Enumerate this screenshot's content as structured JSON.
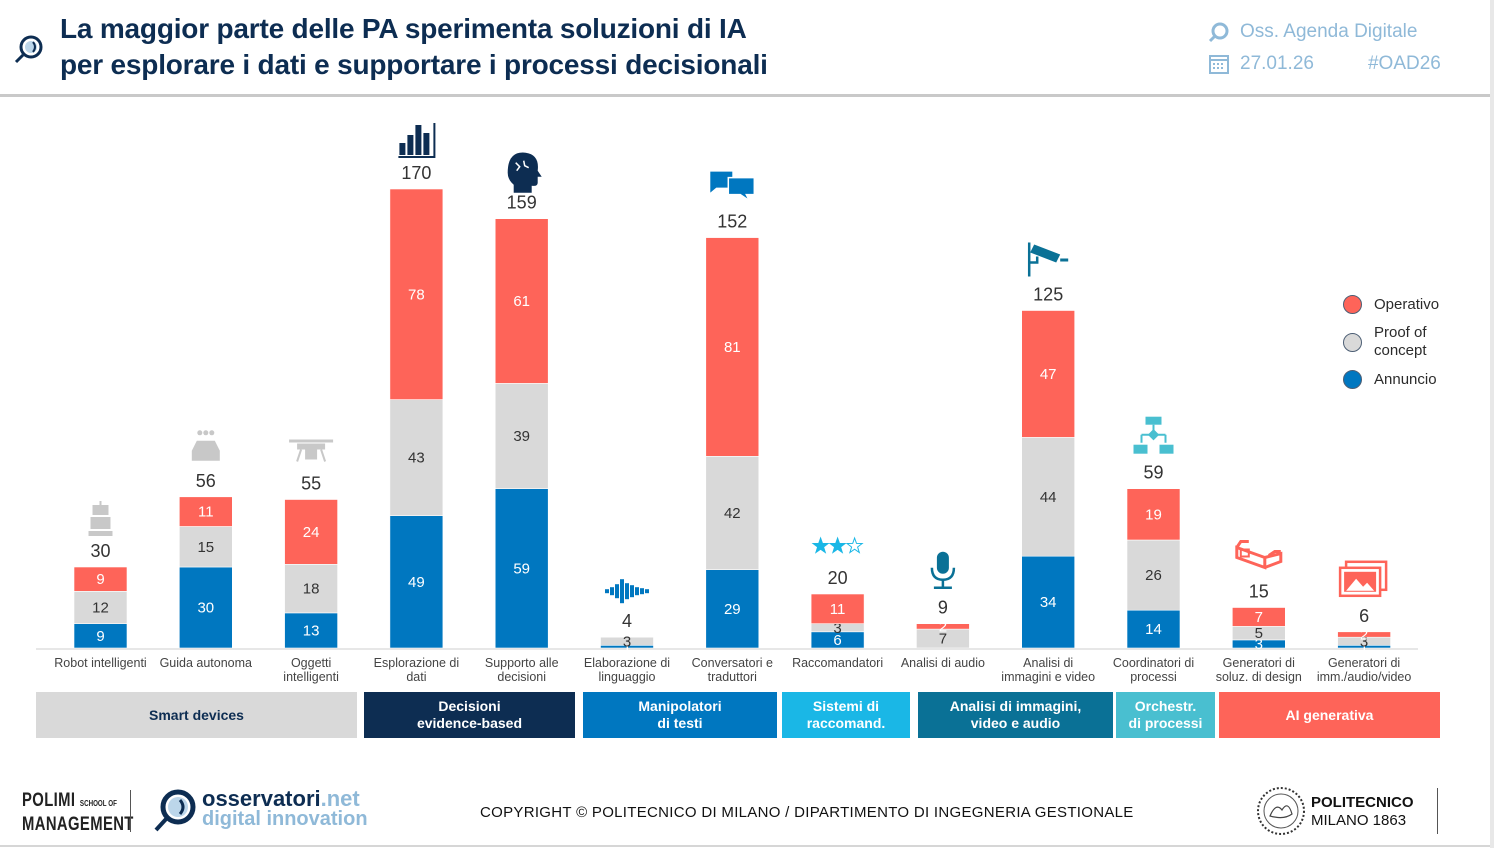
{
  "header": {
    "title_line1": "La maggior parte delle PA sperimenta soluzioni di IA",
    "title_line2": "per esplorare i dati e supportare i processi decisionali",
    "title_icon": "magnifier-icon",
    "source": "Oss. Agenda Digitale",
    "date": "27.01.26",
    "hashtag": "#OAD26"
  },
  "colors": {
    "operativo": "#fe6459",
    "poc": "#d9d9d9",
    "annuncio": "#0077c0",
    "title": "#0d2d52",
    "accent_light": "#8fb9d8"
  },
  "legend": [
    {
      "key": "operativo",
      "label": "Operativo"
    },
    {
      "key": "poc",
      "label": "Proof of concept"
    },
    {
      "key": "annuncio",
      "label": "Annuncio"
    }
  ],
  "chart_data": {
    "type": "bar",
    "stacked": true,
    "title": "La maggior parte delle PA sperimenta soluzioni di IA per esplorare i dati e supportare i processi decisionali",
    "xlabel": "",
    "ylabel": "",
    "ylim": [
      0,
      170
    ],
    "grid": false,
    "legend_position": "right",
    "categories": [
      "Robot intelligenti",
      "Guida autonoma",
      "Oggetti intelligenti",
      "Esplorazione di dati",
      "Supporto alle decisioni",
      "Elaborazione di linguaggio",
      "Conversatori e traduttori",
      "Raccomandatori",
      "Analisi di audio",
      "Analisi di immagini e video",
      "Coordinatori di processi",
      "Generatori di soluz. di design",
      "Generatori di imm./audio/video"
    ],
    "category_labels": [
      [
        "Robot intelligenti"
      ],
      [
        "Guida autonoma"
      ],
      [
        "Oggetti",
        "intelligenti"
      ],
      [
        "Esplorazione di",
        "dati"
      ],
      [
        "Supporto alle",
        "decisioni"
      ],
      [
        "Elaborazione di",
        "linguaggio"
      ],
      [
        "Conversatori e",
        "traduttori"
      ],
      [
        "Raccomandatori"
      ],
      [
        "Analisi di audio"
      ],
      [
        "Analisi di",
        "immagini e video"
      ],
      [
        "Coordinatori di",
        "processi"
      ],
      [
        "Generatori di",
        "soluz. di design"
      ],
      [
        "Generatori di",
        "imm./audio/video"
      ]
    ],
    "totals": [
      30,
      56,
      55,
      170,
      159,
      4,
      152,
      20,
      9,
      125,
      59,
      15,
      6
    ],
    "series": [
      {
        "name": "Annuncio",
        "key": "annuncio",
        "values": [
          9,
          30,
          13,
          49,
          59,
          1,
          29,
          6,
          0,
          34,
          14,
          3,
          1
        ]
      },
      {
        "name": "Proof of concept",
        "key": "poc",
        "values": [
          12,
          15,
          18,
          43,
          39,
          3,
          42,
          3,
          7,
          44,
          26,
          5,
          3
        ]
      },
      {
        "name": "Operativo",
        "key": "operativo",
        "values": [
          9,
          11,
          24,
          78,
          61,
          0,
          81,
          11,
          2,
          47,
          19,
          7,
          2
        ]
      }
    ],
    "icons": [
      "robot-icon",
      "car-wash-icon",
      "drone-icon",
      "bar-chart-icon",
      "brain-head-icon",
      "sound-wave-icon",
      "chat-bubbles-icon",
      "rating-stars-icon",
      "microphone-icon",
      "security-camera-icon",
      "flowchart-icon",
      "3d-glasses-icon",
      "image-gallery-icon"
    ],
    "icon_colors": [
      "#c8c8c8",
      "#c8c8c8",
      "#c8c8c8",
      "#0d2d52",
      "#0d2d52",
      "#0077c0",
      "#0077c0",
      "#1ab7e6",
      "#0a7196",
      "#0a7196",
      "#49bfd0",
      "#fe6459",
      "#fe6459"
    ]
  },
  "groups": [
    {
      "label": "Smart devices",
      "color": "#d9d9d9",
      "text_color": "#0d2d52",
      "span": [
        0,
        2
      ]
    },
    {
      "label": "Decisioni evidence-based",
      "color": "#0d2d52",
      "text_color": "#ffffff",
      "span": [
        3,
        4
      ]
    },
    {
      "label": "Manipolatori di testi",
      "color": "#0077c0",
      "text_color": "#ffffff",
      "span": [
        5,
        6
      ]
    },
    {
      "label": "Sistemi di raccomand.",
      "color": "#1ab7e6",
      "text_color": "#ffffff",
      "span": [
        7,
        7
      ]
    },
    {
      "label": "Analisi di immagini, video e audio",
      "color": "#0a7196",
      "text_color": "#ffffff",
      "span": [
        8,
        9
      ]
    },
    {
      "label": "Orchestr. di processi",
      "color": "#49bfd0",
      "text_color": "#ffffff",
      "span": [
        10,
        10
      ]
    },
    {
      "label": "AI generativa",
      "color": "#fe6459",
      "text_color": "#ffffff",
      "span": [
        11,
        12
      ]
    }
  ],
  "group_lines": [
    [
      "Smart devices"
    ],
    [
      "Decisioni",
      "evidence-based"
    ],
    [
      "Manipolatori",
      "di testi"
    ],
    [
      "Sistemi di",
      "raccomand."
    ],
    [
      "Analisi di immagini,",
      "video e audio"
    ],
    [
      "Orchestr.",
      "di processi"
    ],
    [
      "AI generativa"
    ]
  ],
  "footer": {
    "polimi_line1": "POLIMI",
    "polimi_school": "SCHOOL OF",
    "polimi_line2": "MANAGEMENT",
    "osservatori_main": "osservatori",
    "osservatori_tld": ".net",
    "osservatori_sub": "digital innovation",
    "copyright": "COPYRIGHT © POLITECNICO DI MILANO / DIPARTIMENTO DI INGEGNERIA GESTIONALE",
    "poli_line1": "POLITECNICO",
    "poli_line2": "MILANO 1863"
  }
}
